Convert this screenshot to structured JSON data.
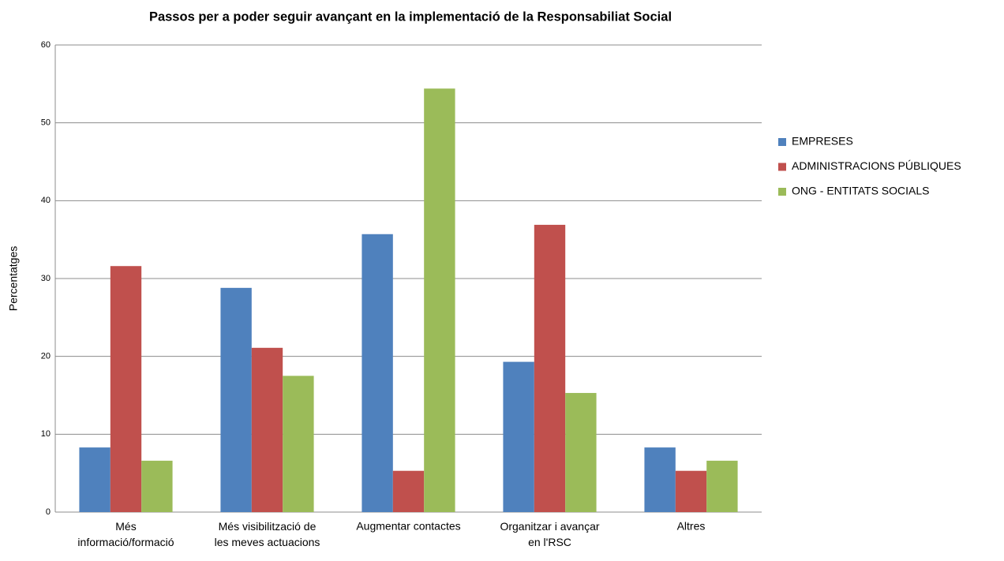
{
  "chart_data": {
    "type": "bar",
    "title": "Passos per a poder seguir avançant en la implementació de la Responsabiliat Social",
    "ylabel": "Percentatges",
    "categories": [
      "Més\ninformació/formació",
      "Més visibilització de\nles meves actuacions",
      "Augmentar contactes",
      "Organitzar i avançar\nen l'RSC",
      "Altres"
    ],
    "series": [
      {
        "name": "EMPRESES",
        "color": "#4f81bd",
        "values": [
          8.3,
          28.8,
          35.7,
          19.3,
          8.3
        ]
      },
      {
        "name": "ADMINISTRACIONS PÚBLIQUES",
        "color": "#c0504d",
        "values": [
          31.6,
          21.1,
          5.3,
          36.9,
          5.3
        ]
      },
      {
        "name": "ONG - ENTITATS SOCIALS",
        "color": "#9bbb59",
        "values": [
          6.6,
          17.5,
          54.4,
          15.3,
          6.6
        ]
      }
    ],
    "ylim": [
      0,
      60
    ],
    "yticks": [
      0,
      10,
      20,
      30,
      40,
      50,
      60
    ],
    "grid": true,
    "legend": "right"
  }
}
